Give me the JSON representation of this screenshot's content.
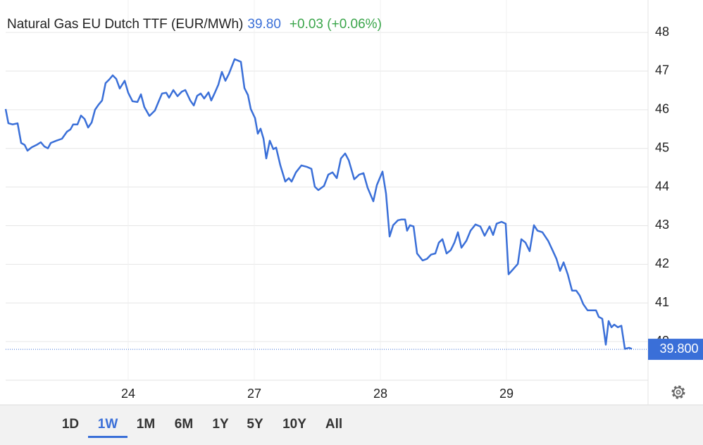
{
  "chart_data": {
    "type": "line",
    "title": "Natural Gas EU Dutch TTF (EUR/MWh)",
    "last_price": {
      "value": 39.8,
      "label": "39.80"
    },
    "change_label": "+0.03 (+0.06%)",
    "last_price_axis_label": "39.800",
    "color": "#3a6fd8",
    "x": [
      0.028,
      0.05,
      0.084,
      0.123,
      0.151,
      0.179,
      0.201,
      0.235,
      0.274,
      0.307,
      0.335,
      0.363,
      0.386,
      0.43,
      0.475,
      0.514,
      0.542,
      0.564,
      0.598,
      0.626,
      0.654,
      0.682,
      0.71,
      0.737,
      0.765,
      0.793,
      0.821,
      0.849,
      0.877,
      0.905,
      0.933,
      0.972,
      1.0,
      1.034,
      1.073,
      1.101,
      1.128,
      1.168,
      1.212,
      1.24,
      1.268,
      1.302,
      1.324,
      1.358,
      1.391,
      1.425,
      1.453,
      1.492,
      1.52,
      1.547,
      1.575,
      1.603,
      1.637,
      1.659,
      1.687,
      1.715,
      1.743,
      1.771,
      1.799,
      1.844,
      1.894,
      1.922,
      1.95,
      1.972,
      2.006,
      2.028,
      2.05,
      2.073,
      2.095,
      2.123,
      2.151,
      2.173,
      2.207,
      2.246,
      2.274,
      2.296,
      2.33,
      2.374,
      2.419,
      2.453,
      2.48,
      2.508,
      2.553,
      2.587,
      2.62,
      2.654,
      2.687,
      2.721,
      2.749,
      2.793,
      2.832,
      2.866,
      2.899,
      2.944,
      2.972,
      3.017,
      3.045,
      3.073,
      3.101,
      3.14,
      3.168,
      3.196,
      3.212,
      3.235,
      3.263,
      3.291,
      3.335,
      3.369,
      3.402,
      3.436,
      3.464,
      3.492,
      3.525,
      3.559,
      3.587,
      3.615,
      3.643,
      3.682,
      3.715,
      3.754,
      3.793,
      3.827,
      3.866,
      3.894,
      3.922,
      3.961,
      3.994,
      4.017,
      4.05,
      4.09,
      4.118,
      4.151,
      4.184,
      4.218,
      4.246,
      4.285,
      4.33,
      4.369,
      4.397,
      4.425,
      4.453,
      4.486,
      4.52,
      4.553,
      4.581,
      4.609,
      4.643,
      4.676,
      4.71,
      4.732,
      4.76,
      4.788,
      4.81,
      4.833,
      4.855,
      4.883,
      4.911,
      4.939,
      4.972,
      4.995
    ],
    "values": [
      46.02,
      45.65,
      45.62,
      45.65,
      45.14,
      45.09,
      44.94,
      45.03,
      45.09,
      45.16,
      45.05,
      45.0,
      45.14,
      45.2,
      45.25,
      45.43,
      45.49,
      45.62,
      45.62,
      45.85,
      45.76,
      45.54,
      45.67,
      46.0,
      46.13,
      46.24,
      46.69,
      46.78,
      46.89,
      46.8,
      46.55,
      46.75,
      46.44,
      46.22,
      46.2,
      46.4,
      46.07,
      45.84,
      45.98,
      46.2,
      46.42,
      46.44,
      46.31,
      46.51,
      46.35,
      46.47,
      46.51,
      46.24,
      46.11,
      46.36,
      46.42,
      46.29,
      46.45,
      46.24,
      46.44,
      46.65,
      46.98,
      46.75,
      46.93,
      47.31,
      47.24,
      46.56,
      46.38,
      46.02,
      45.78,
      45.38,
      45.51,
      45.25,
      44.74,
      45.2,
      44.98,
      45.02,
      44.56,
      44.14,
      44.23,
      44.14,
      44.38,
      44.56,
      44.52,
      44.47,
      44.01,
      43.92,
      44.03,
      44.32,
      44.38,
      44.23,
      44.74,
      44.87,
      44.69,
      44.2,
      44.32,
      44.36,
      43.98,
      43.63,
      44.05,
      44.4,
      43.83,
      42.72,
      43.01,
      43.14,
      43.16,
      43.16,
      42.87,
      43.01,
      42.98,
      42.28,
      42.1,
      42.14,
      42.25,
      42.28,
      42.56,
      42.65,
      42.28,
      42.37,
      42.56,
      42.83,
      42.43,
      42.61,
      42.87,
      43.03,
      42.98,
      42.74,
      42.98,
      42.76,
      43.05,
      43.1,
      43.05,
      41.74,
      41.86,
      42.01,
      42.65,
      42.56,
      42.34,
      43.01,
      42.87,
      42.83,
      42.61,
      42.34,
      42.14,
      41.83,
      42.05,
      41.74,
      41.32,
      41.32,
      41.19,
      40.97,
      40.81,
      40.81,
      40.81,
      40.64,
      40.59,
      39.92,
      40.53,
      40.37,
      40.44,
      40.37,
      40.41,
      39.81,
      39.84,
      39.81
    ],
    "xlim": [
      0.028,
      5.123
    ],
    "xticks": [
      {
        "value": 1,
        "label": "24"
      },
      {
        "value": 2,
        "label": "27"
      },
      {
        "value": 3,
        "label": "28"
      },
      {
        "value": 4,
        "label": "29"
      }
    ],
    "ylim": [
      39,
      48.84
    ],
    "yticks": [
      40,
      41,
      42,
      43,
      44,
      45,
      46,
      47,
      48
    ],
    "grid": true,
    "ranges": [
      "1D",
      "1W",
      "1M",
      "6M",
      "1Y",
      "5Y",
      "10Y",
      "All"
    ],
    "selected_range": "1W"
  }
}
